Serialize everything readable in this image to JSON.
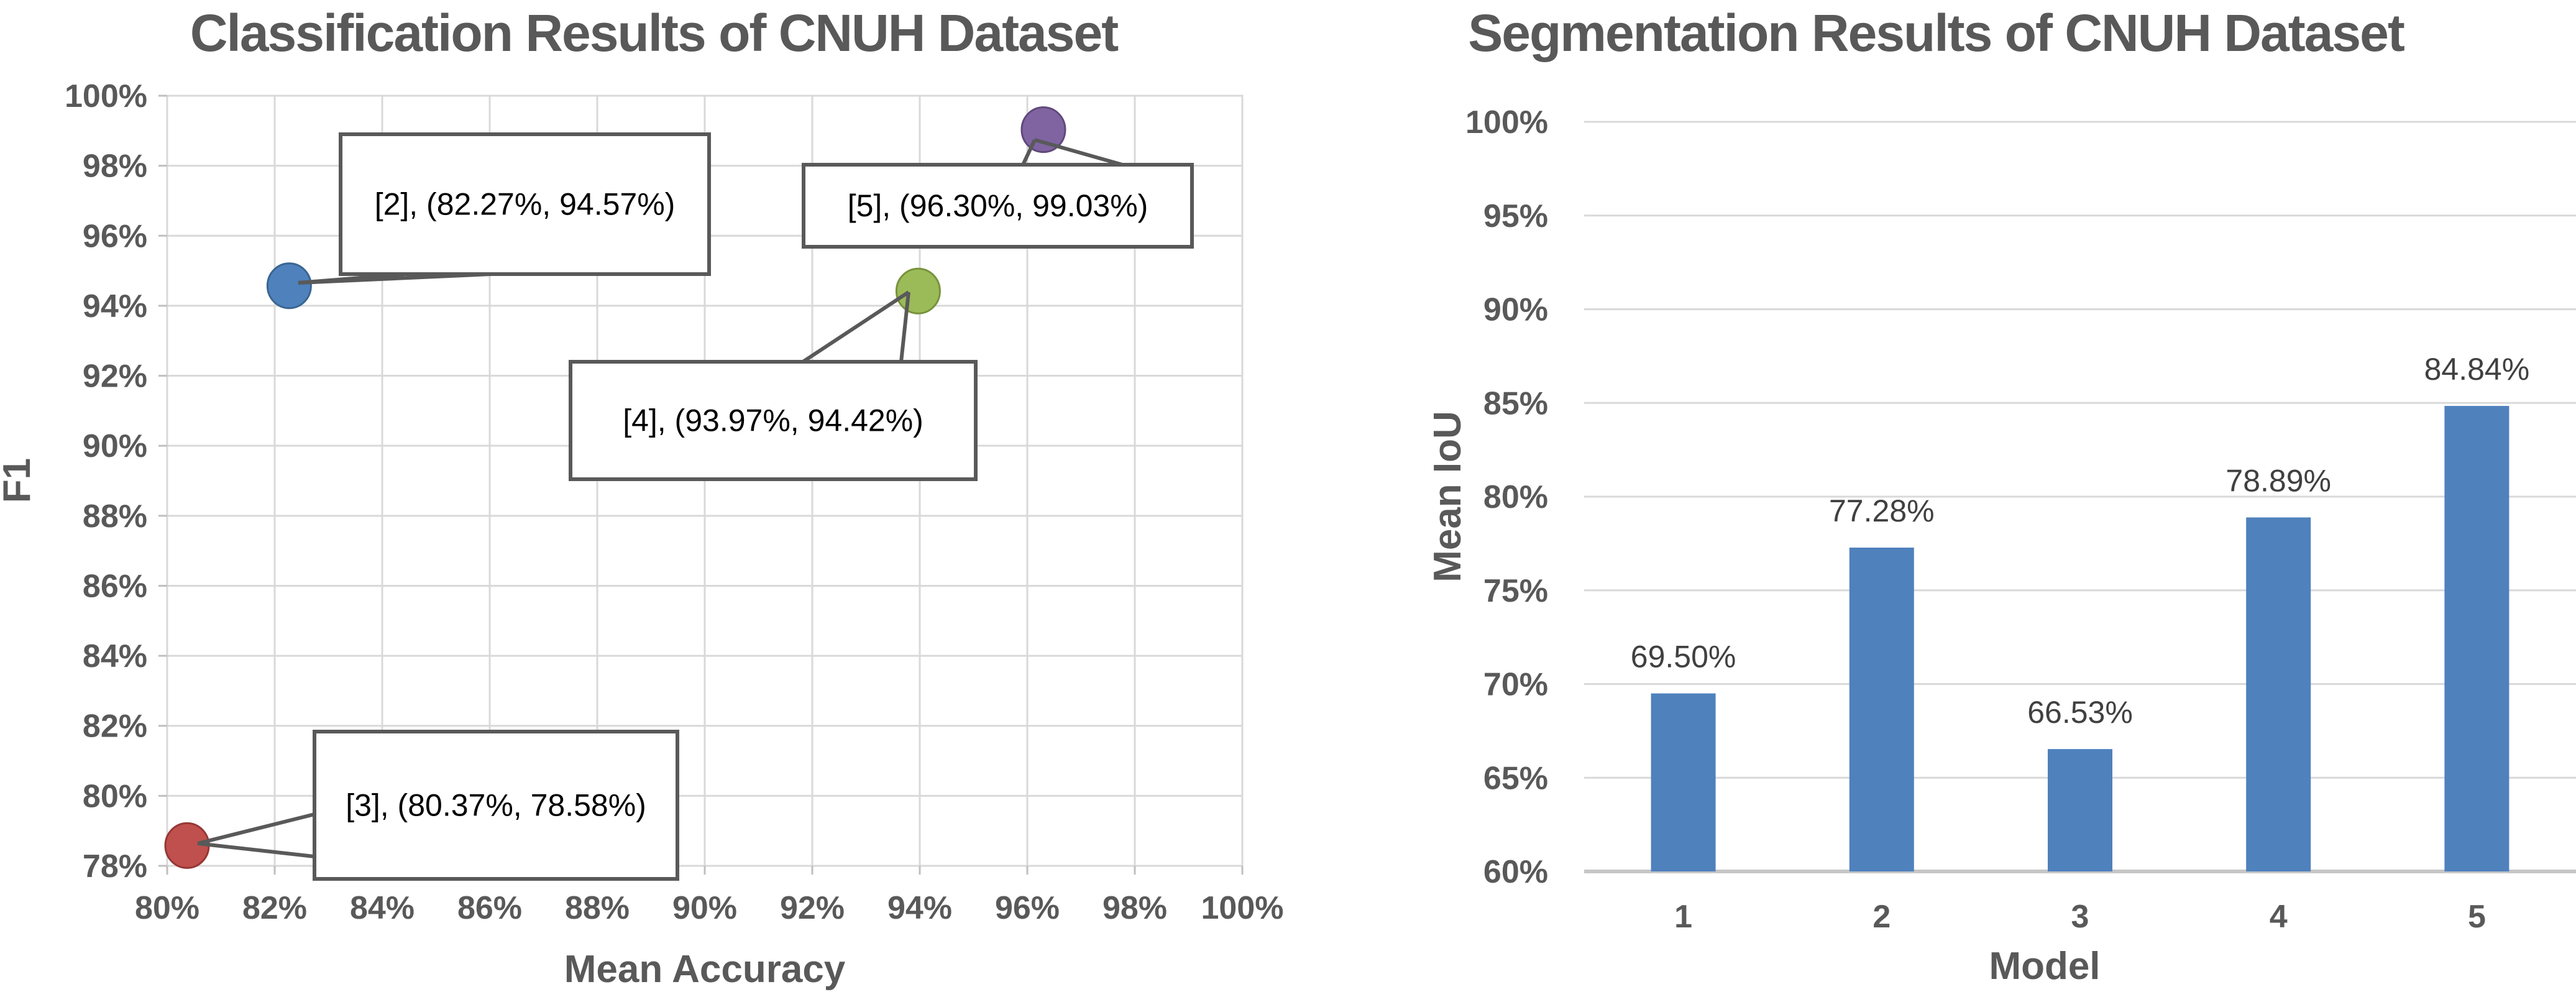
{
  "page": {
    "background": "#ffffff"
  },
  "colors": {
    "title_text": "#595959",
    "axis_text": "#595959",
    "gridline": "#D9D9D9",
    "axis_line": "#BFBFBF",
    "baseline": "#C6C6C6",
    "callout_border": "#595959",
    "callout_fill": "#ffffff",
    "callout_text": "#000000",
    "value_label_text": "#404040",
    "bar_fill": "#4F81BD"
  },
  "chart_data": [
    {
      "type": "scatter",
      "title": "Classification Results of CNUH Dataset",
      "xlabel": "Mean Accuracy",
      "ylabel": "F1",
      "xlim": [
        80,
        100
      ],
      "ylim": [
        78,
        100
      ],
      "x_tick_labels": [
        "80%",
        "82%",
        "84%",
        "86%",
        "88%",
        "90%",
        "92%",
        "94%",
        "96%",
        "98%",
        "100%"
      ],
      "y_tick_labels": [
        "100%",
        "98%",
        "96%",
        "94%",
        "92%",
        "90%",
        "88%",
        "86%",
        "84%",
        "82%",
        "80%",
        "78%"
      ],
      "grid": true,
      "legend": "none",
      "points": [
        {
          "id": "2",
          "x": 82.27,
          "y": 94.57,
          "color": "#4F81BD",
          "edge": "#3A6591",
          "callout": "[2], (82.27%, 94.57%)"
        },
        {
          "id": "5",
          "x": 96.3,
          "y": 99.03,
          "color": "#8064A2",
          "edge": "#60497A",
          "callout": "[5], (96.30%, 99.03%)"
        },
        {
          "id": "4",
          "x": 93.97,
          "y": 94.42,
          "color": "#9BBB59",
          "edge": "#77933C",
          "callout": "[4], (93.97%, 94.42%)"
        },
        {
          "id": "3",
          "x": 80.37,
          "y": 78.58,
          "color": "#C0504D",
          "edge": "#953735",
          "callout": "[3], (80.37%, 78.58%)"
        }
      ]
    },
    {
      "type": "bar",
      "title": "Segmentation Results of CNUH Dataset",
      "xlabel": "Model",
      "ylabel": "Mean IoU",
      "categories": [
        "1",
        "2",
        "3",
        "4",
        "5"
      ],
      "values": [
        69.5,
        77.28,
        66.53,
        78.89,
        84.84
      ],
      "value_labels": [
        "69.50%",
        "77.28%",
        "66.53%",
        "78.89%",
        "84.84%"
      ],
      "ylim": [
        60,
        100
      ],
      "y_tick_labels": [
        "100%",
        "95%",
        "90%",
        "85%",
        "80%",
        "75%",
        "70%",
        "65%",
        "60%"
      ],
      "grid": true,
      "legend": "none"
    }
  ]
}
